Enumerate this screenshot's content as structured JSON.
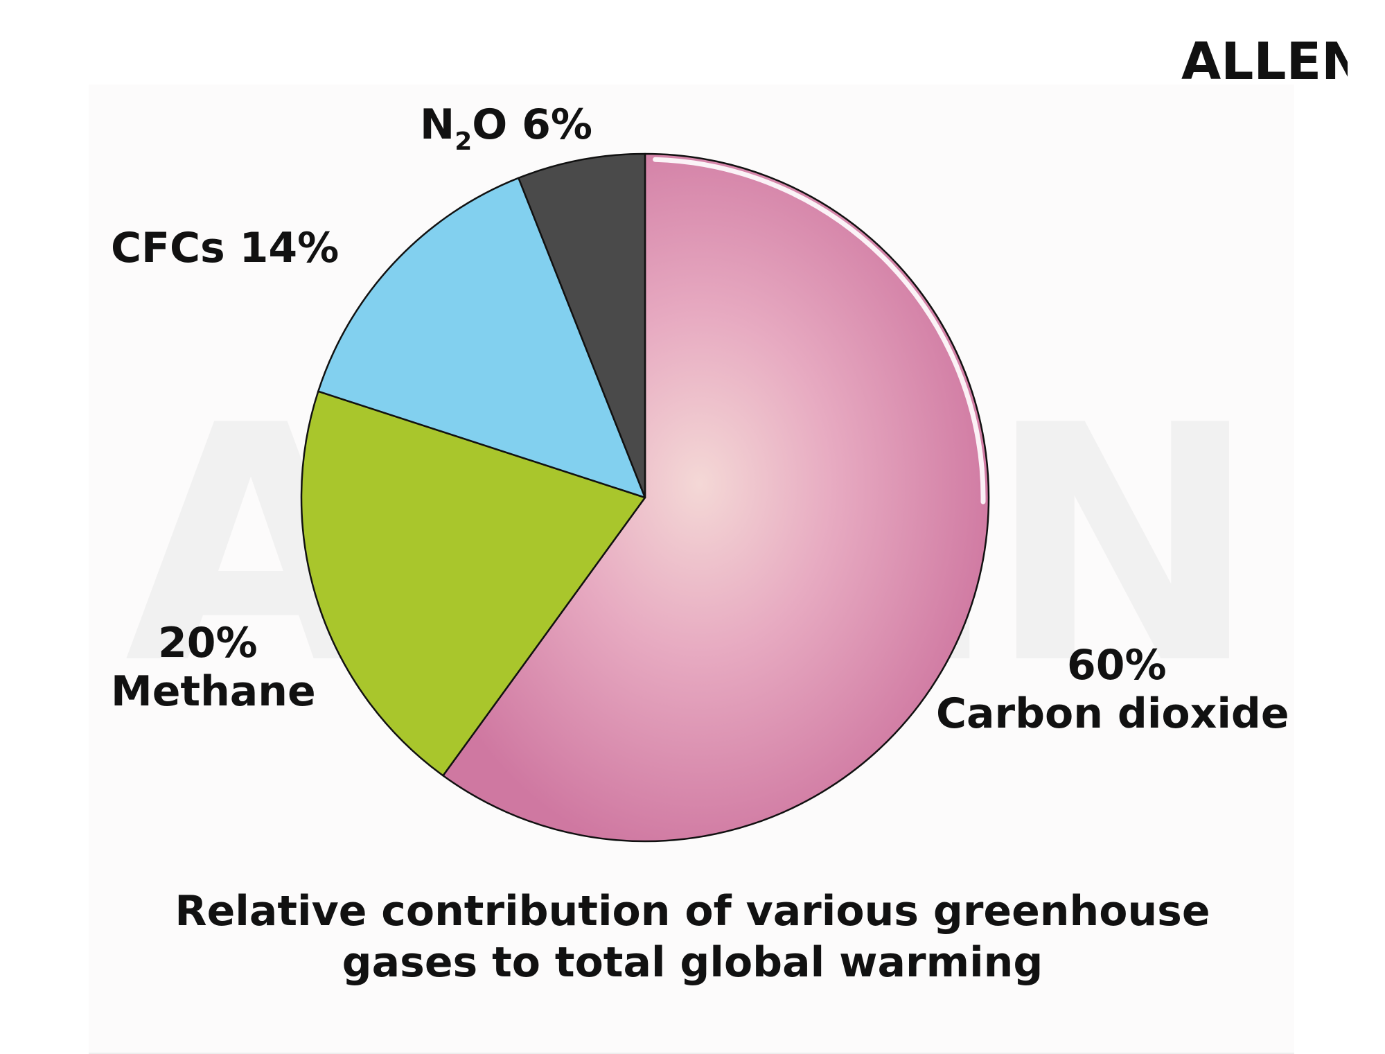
{
  "brand": "ALLEN",
  "chart_data": {
    "type": "pie",
    "title": "Relative contribution of various greenhouse gases to total global warming",
    "title_lines": [
      "Relative contribution of various greenhouse",
      "gases to total global warming"
    ],
    "slices": [
      {
        "name": "Carbon dioxide",
        "value": 60,
        "label_value": "60%",
        "label_name": "Carbon dioxide",
        "color": "#d982a8"
      },
      {
        "name": "Methane",
        "value": 20,
        "label_value": "20%",
        "label_name": "Methane",
        "color": "#a9c62c"
      },
      {
        "name": "CFCs",
        "value": 14,
        "label": "CFCs 14%",
        "color": "#82d0ef"
      },
      {
        "name": "N2O",
        "value": 6,
        "label_main": "N",
        "label_sub": "2",
        "label_rest": "O 6%",
        "color": "#4a4a4a"
      }
    ],
    "start": "12 o'clock",
    "direction": "clockwise",
    "legend": "none"
  }
}
